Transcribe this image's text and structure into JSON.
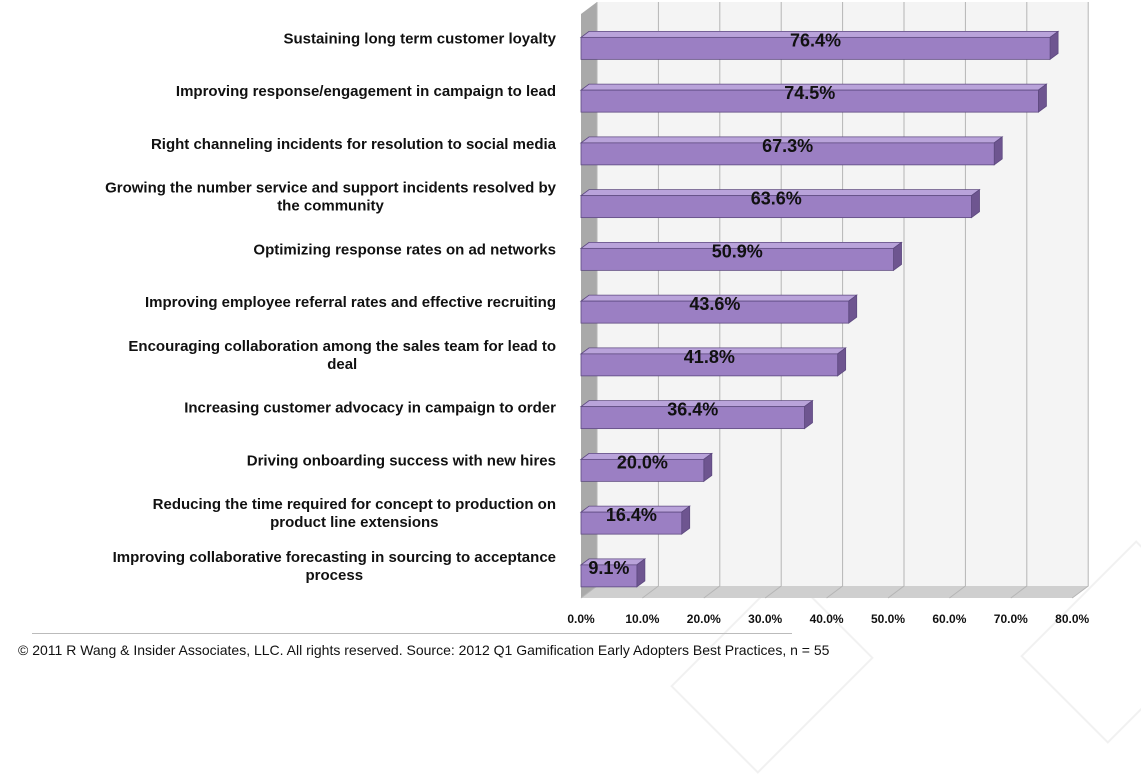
{
  "chart_data": {
    "type": "bar",
    "orientation": "horizontal",
    "categories": [
      [
        "Sustaining long term customer loyalty"
      ],
      [
        "Improving response/engagement in campaign to lead"
      ],
      [
        "Right channeling incidents for resolution to social media"
      ],
      [
        "Growing the number service and support incidents resolved by",
        "the community"
      ],
      [
        "Optimizing response rates on ad networks"
      ],
      [
        "Improving employee referral rates and effective recruiting"
      ],
      [
        "Encouraging collaboration among the sales team for lead to",
        "deal"
      ],
      [
        "Increasing customer advocacy  in campaign to order"
      ],
      [
        "Driving onboarding success with new hires"
      ],
      [
        "Reducing the time required for concept to production on",
        "product line extensions"
      ],
      [
        "Improving collaborative forecasting in sourcing to acceptance",
        "process"
      ]
    ],
    "values": [
      76.4,
      74.5,
      67.3,
      63.6,
      50.9,
      43.6,
      41.8,
      36.4,
      20.0,
      16.4,
      9.1
    ],
    "value_labels": [
      "76.4%",
      "74.5%",
      "67.3%",
      "63.6%",
      "50.9%",
      "43.6%",
      "41.8%",
      "36.4%",
      "20.0%",
      "16.4%",
      "9.1%"
    ],
    "x_ticks": [
      0,
      10,
      20,
      30,
      40,
      50,
      60,
      70,
      80
    ],
    "x_tick_labels": [
      "0.0%",
      "10.0%",
      "20.0%",
      "30.0%",
      "40.0%",
      "50.0%",
      "60.0%",
      "70.0%",
      "80.0%"
    ],
    "xlim": [
      0,
      80
    ],
    "grid": true,
    "legend": "none",
    "title": "",
    "xlabel": "",
    "ylabel": ""
  },
  "colors": {
    "bar_front": "#9b7fc3",
    "bar_top": "#b9a3da",
    "bar_side": "#6e5590",
    "bar_outline": "#5e4a80",
    "grid": "#b5b5b5",
    "back_wall": "#f4f4f4",
    "left_wall": "#a9a9a9",
    "floor": "#cfcfcf"
  },
  "footer": {
    "text": "© 2011 R Wang & Insider Associates, LLC.  All rights reserved. Source: 2012 Q1 Gamification Early Adopters Best Practices, n = 55"
  }
}
